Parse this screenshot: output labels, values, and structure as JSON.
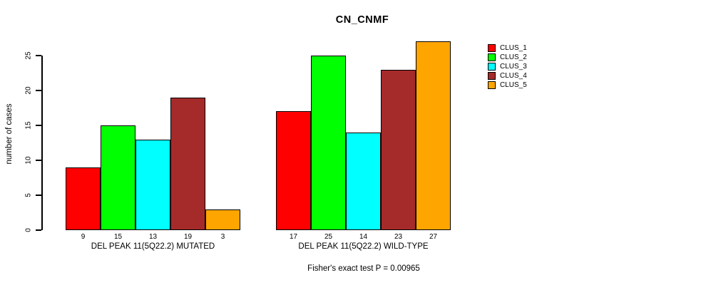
{
  "title": "CN_CNMF",
  "y_axis": {
    "label": "number of cases",
    "ticks": [
      "0",
      "5",
      "10",
      "15",
      "20",
      "25"
    ]
  },
  "groups": [
    {
      "label": "DEL PEAK 11(5Q22.2) MUTATED"
    },
    {
      "label": "DEL PEAK 11(5Q22.2) WILD-TYPE"
    }
  ],
  "legend": {
    "items": [
      {
        "label": "CLUS_1",
        "color": "#FF0000"
      },
      {
        "label": "CLUS_2",
        "color": "#00FF00"
      },
      {
        "label": "CLUS_3",
        "color": "#00FFFF"
      },
      {
        "label": "CLUS_4",
        "color": "#A52A2A"
      },
      {
        "label": "CLUS_5",
        "color": "#FFA500"
      }
    ]
  },
  "footer": {
    "caption": "Fisher's exact test P = 0.00965"
  },
  "chart_data": {
    "type": "bar",
    "title": "CN_CNMF",
    "xlabel": "",
    "ylabel": "number of cases",
    "ylim": [
      0,
      27
    ],
    "yticks": [
      0,
      5,
      10,
      15,
      20,
      25
    ],
    "grid": false,
    "legend_position": "right",
    "bar_value_labels": true,
    "categories": [
      "DEL PEAK 11(5Q22.2) MUTATED",
      "DEL PEAK 11(5Q22.2) WILD-TYPE"
    ],
    "series": [
      {
        "name": "CLUS_1",
        "color": "#FF0000",
        "values": [
          9,
          17
        ]
      },
      {
        "name": "CLUS_2",
        "color": "#00FF00",
        "values": [
          15,
          25
        ]
      },
      {
        "name": "CLUS_3",
        "color": "#00FFFF",
        "values": [
          13,
          14
        ]
      },
      {
        "name": "CLUS_4",
        "color": "#A52A2A",
        "values": [
          19,
          23
        ]
      },
      {
        "name": "CLUS_5",
        "color": "#FFA500",
        "values": [
          3,
          27
        ]
      }
    ],
    "annotation": "Fisher's exact test P = 0.00965"
  }
}
